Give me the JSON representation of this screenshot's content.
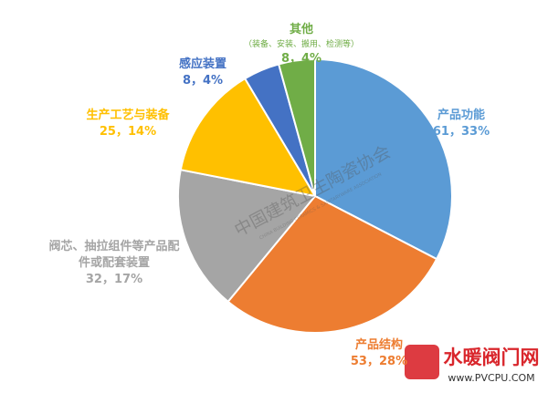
{
  "chart_data": {
    "type": "pie",
    "categories": [
      "产品功能",
      "产品结构",
      "阀芯、抽拉组件等产品配件或配套装置",
      "生产工艺与装备",
      "感应装置",
      "其他"
    ],
    "values": [
      61,
      53,
      32,
      25,
      8,
      8
    ],
    "value_labels": [
      "61，33%",
      "53，28%",
      "32，17%",
      "25，14%",
      "8，4%",
      "8，4%"
    ],
    "colors": [
      "#5b9bd5",
      "#ed7d31",
      "#a5a5a5",
      "#ffc000",
      "#4472c4",
      "#70ad47"
    ],
    "annotations": [
      "（装备、安装、搬用、检测等）"
    ],
    "watermarks": [
      "中国建筑卫生陶瓷协会",
      "CHINA BUILDING CERAMICS & SANITARYWARE ASSOCIATION",
      "水暖阀门网",
      "www.PVCPU.COM"
    ]
  }
}
